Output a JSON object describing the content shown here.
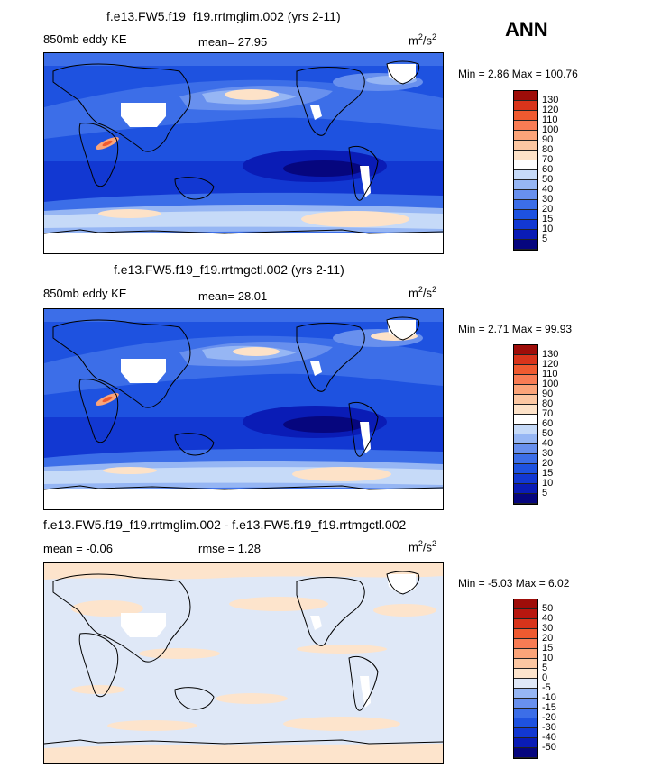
{
  "season": "ANN",
  "units_base": "m",
  "units_exp_num": "2",
  "units_per": "/s",
  "units_exp_den": "2",
  "panels": [
    {
      "title": "f.e13.FW5.f19_f19.rrtmglim.002 (yrs 2-11)",
      "left_label": "850mb eddy KE",
      "stat_text": "mean=  27.95",
      "minmax_text": "Min =   2.86 Max = 100.76"
    },
    {
      "title": "f.e13.FW5.f19_f19.rrtmgctl.002 (yrs 2-11)",
      "left_label": "850mb eddy KE",
      "stat_text": "mean=  28.01",
      "minmax_text": "Min =   2.71 Max =  99.93"
    },
    {
      "title": "f.e13.FW5.f19_f19.rrtmglim.002 - f.e13.FW5.f19_f19.rrtmgctl.002",
      "left_label": "mean = -0.06",
      "stat_text": "rmse =   1.28",
      "minmax_text": "Min =  -5.03 Max =   6.02"
    }
  ],
  "chart_data": [
    {
      "type": "heatmap",
      "title": "f.e13.FW5.f19_f19.rrtmglim.002 (yrs 2-11)",
      "variable": "850mb eddy KE",
      "units": "m2/s2",
      "mean": 27.95,
      "min": 2.86,
      "max": 100.76,
      "contour_levels": [
        5,
        10,
        15,
        20,
        30,
        40,
        50,
        60,
        70,
        80,
        90,
        100,
        110,
        120,
        130
      ],
      "colors": [
        "#06067e",
        "#0a1cb6",
        "#1238d2",
        "#1e52e0",
        "#3c6ee8",
        "#6890ee",
        "#96b6f4",
        "#c6daf8",
        "#ffffff",
        "#fde2c8",
        "#fcc7a2",
        "#fba479",
        "#f87c54",
        "#ef5a30",
        "#d8341b",
        "#9e0d09"
      ]
    },
    {
      "type": "heatmap",
      "title": "f.e13.FW5.f19_f19.rrtmgctl.002 (yrs 2-11)",
      "variable": "850mb eddy KE",
      "units": "m2/s2",
      "mean": 28.01,
      "min": 2.71,
      "max": 99.93,
      "contour_levels": [
        5,
        10,
        15,
        20,
        30,
        40,
        50,
        60,
        70,
        80,
        90,
        100,
        110,
        120,
        130
      ],
      "colors": [
        "#06067e",
        "#0a1cb6",
        "#1238d2",
        "#1e52e0",
        "#3c6ee8",
        "#6890ee",
        "#96b6f4",
        "#c6daf8",
        "#ffffff",
        "#fde2c8",
        "#fcc7a2",
        "#fba479",
        "#f87c54",
        "#ef5a30",
        "#d8341b",
        "#9e0d09"
      ]
    },
    {
      "type": "heatmap",
      "title": "f.e13.FW5.f19_f19.rrtmglim.002 - f.e13.FW5.f19_f19.rrtmgctl.002",
      "units": "m2/s2",
      "mean": -0.06,
      "rmse": 1.28,
      "min": -5.03,
      "max": 6.02,
      "contour_levels": [
        -50,
        -40,
        -30,
        -20,
        -15,
        -10,
        -5,
        0,
        5,
        10,
        15,
        20,
        30,
        40,
        50
      ],
      "colors": [
        "#06067e",
        "#0a1cb6",
        "#1238d2",
        "#1e52e0",
        "#3c6ee8",
        "#6890ee",
        "#96b6f4",
        "#dfe8f7",
        "#fde4cc",
        "#fcc7a2",
        "#fba479",
        "#f87c54",
        "#ef5a30",
        "#d8341b",
        "#b8170f",
        "#9e0d09"
      ]
    }
  ]
}
